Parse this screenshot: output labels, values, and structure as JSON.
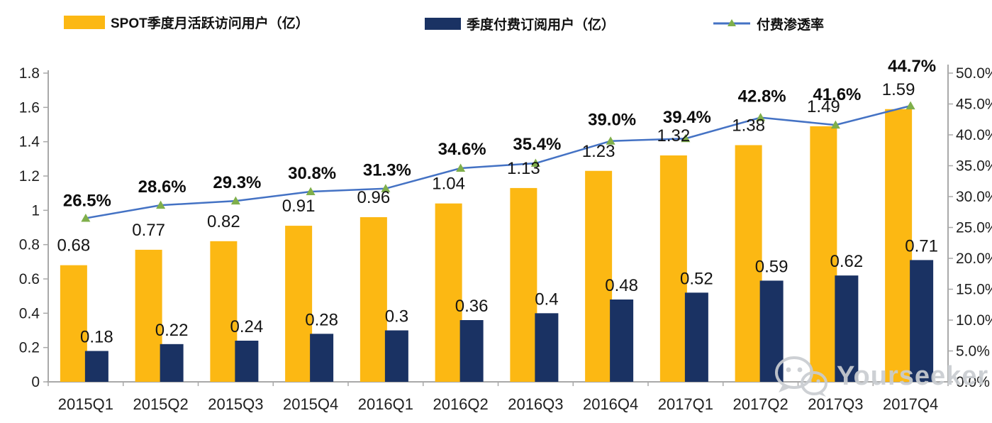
{
  "legend": {
    "items": [
      {
        "label": "SPOT季度月活跃访问用户（亿）"
      },
      {
        "label": "季度付费订阅用户（亿）"
      },
      {
        "label": "付费渗透率"
      }
    ]
  },
  "watermark": {
    "text": "Yourseeker",
    "icon": "wechat-icon"
  },
  "colors": {
    "bar_mau": "#FCB813",
    "bar_subs": "#1A3263",
    "line": "#4472C4",
    "marker": "#7FAF4B",
    "axis": "#A9A9A9",
    "tick_label": "#1F1F1F",
    "bar_label": "#141414",
    "pct_label": "#0D0D0D",
    "watermark": "#C9CDD1"
  },
  "chart_data": {
    "type": "combo-bar-line",
    "title": "",
    "categories": [
      "2015Q1",
      "2015Q2",
      "2015Q3",
      "2015Q4",
      "2016Q1",
      "2016Q2",
      "2016Q3",
      "2016Q4",
      "2017Q1",
      "2017Q2",
      "2017Q3",
      "2017Q4"
    ],
    "series": [
      {
        "name": "SPOT季度月活跃访问用户（亿）",
        "type": "bar",
        "axis": "left",
        "color": "#FCB813",
        "values": [
          0.68,
          0.77,
          0.82,
          0.91,
          0.96,
          1.04,
          1.13,
          1.23,
          1.32,
          1.38,
          1.49,
          1.59
        ],
        "labels": [
          "0.68",
          "0.77",
          "0.82",
          "0.91",
          "0.96",
          "1.04",
          "1.13",
          "1.23",
          "1.32",
          "1.38",
          "1.49",
          "1.59"
        ]
      },
      {
        "name": "季度付费订阅用户（亿）",
        "type": "bar",
        "axis": "left",
        "color": "#1A3263",
        "values": [
          0.18,
          0.22,
          0.24,
          0.28,
          0.3,
          0.36,
          0.4,
          0.48,
          0.52,
          0.59,
          0.62,
          0.71
        ],
        "labels": [
          "0.18",
          "0.22",
          "0.24",
          "0.28",
          "0.3",
          "0.36",
          "0.4",
          "0.48",
          "0.52",
          "0.59",
          "0.62",
          "0.71"
        ]
      },
      {
        "name": "付费渗透率",
        "type": "line",
        "axis": "right",
        "color": "#4472C4",
        "marker": "triangle",
        "marker_color": "#7FAF4B",
        "values": [
          26.5,
          28.6,
          29.3,
          30.8,
          31.3,
          34.6,
          35.4,
          39.0,
          39.4,
          42.8,
          41.6,
          44.7
        ],
        "labels": [
          "26.5%",
          "28.6%",
          "29.3%",
          "30.8%",
          "31.3%",
          "34.6%",
          "35.4%",
          "39.0%",
          "39.4%",
          "42.8%",
          "41.6%",
          "44.7%"
        ]
      }
    ],
    "left_axis": {
      "min": 0,
      "max": 1.8,
      "ticks": [
        "0",
        "0.2",
        "0.4",
        "0.6",
        "0.8",
        "1",
        "1.2",
        "1.4",
        "1.6",
        "1.8"
      ]
    },
    "right_axis": {
      "min": 0,
      "max": 50,
      "ticks": [
        "0.0%",
        "5.0%",
        "10.0%",
        "15.0%",
        "20.0%",
        "25.0%",
        "30.0%",
        "35.0%",
        "40.0%",
        "45.0%",
        "50.0%"
      ]
    },
    "grid": false,
    "legend_position": "top"
  }
}
